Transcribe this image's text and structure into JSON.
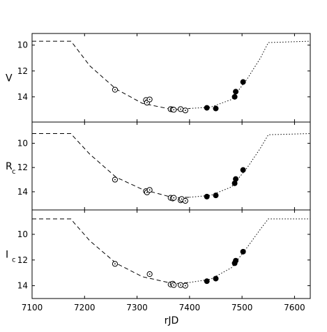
{
  "chart_data": {
    "type": "scatter",
    "xlabel": "rJD",
    "xlim": [
      7100,
      7630
    ],
    "x_ticks": [
      "7100",
      "7200",
      "7300",
      "7400",
      "7500",
      "7600"
    ],
    "grid": false,
    "panels": [
      {
        "ylabel": "V",
        "ylabel_sub": "",
        "ylim_inverted": [
          15.95,
          9.1
        ],
        "y_ticks": [
          10,
          12,
          14
        ],
        "y_tick_labels": [
          "10",
          "12",
          "14"
        ],
        "model_dashed": [
          [
            7100,
            9.7
          ],
          [
            7174,
            9.7
          ],
          [
            7180,
            10.0
          ],
          [
            7210,
            11.6
          ],
          [
            7260,
            13.4
          ],
          [
            7310,
            14.5
          ],
          [
            7370,
            15.0
          ],
          [
            7400,
            14.9
          ]
        ],
        "model_dotted": [
          [
            7400,
            14.9
          ],
          [
            7440,
            14.8
          ],
          [
            7480,
            14.2
          ],
          [
            7510,
            12.6
          ],
          [
            7535,
            11.0
          ],
          [
            7550,
            9.8
          ],
          [
            7630,
            9.7
          ]
        ],
        "open_points": [
          [
            7258,
            13.45
          ],
          [
            7317,
            14.25
          ],
          [
            7319,
            14.45
          ],
          [
            7324,
            14.2
          ],
          [
            7364,
            14.95
          ],
          [
            7368,
            14.98
          ],
          [
            7370,
            15.0
          ],
          [
            7383,
            14.95
          ],
          [
            7392,
            15.05
          ]
        ],
        "filled_points": [
          [
            7433,
            14.85
          ],
          [
            7450,
            14.9
          ],
          [
            7486,
            14.0
          ],
          [
            7488,
            13.6
          ],
          [
            7502,
            12.85
          ]
        ]
      },
      {
        "ylabel": "R",
        "ylabel_sub": "c",
        "ylim_inverted": [
          15.5,
          8.25
        ],
        "y_ticks": [
          10,
          12,
          14
        ],
        "y_tick_labels": [
          "10",
          "12",
          "14"
        ],
        "model_dashed": [
          [
            7100,
            9.2
          ],
          [
            7174,
            9.2
          ],
          [
            7180,
            9.5
          ],
          [
            7210,
            10.9
          ],
          [
            7260,
            12.8
          ],
          [
            7310,
            13.8
          ],
          [
            7370,
            14.5
          ],
          [
            7400,
            14.45
          ]
        ],
        "model_dotted": [
          [
            7400,
            14.45
          ],
          [
            7440,
            14.3
          ],
          [
            7480,
            13.6
          ],
          [
            7510,
            12.0
          ],
          [
            7535,
            10.4
          ],
          [
            7550,
            9.3
          ],
          [
            7630,
            9.2
          ]
        ],
        "open_points": [
          [
            7258,
            13.0
          ],
          [
            7317,
            13.95
          ],
          [
            7319,
            14.05
          ],
          [
            7324,
            13.85
          ],
          [
            7364,
            14.5
          ],
          [
            7368,
            14.55
          ],
          [
            7370,
            14.5
          ],
          [
            7383,
            14.7
          ],
          [
            7385,
            14.6
          ],
          [
            7392,
            14.75
          ]
        ],
        "filled_points": [
          [
            7433,
            14.4
          ],
          [
            7450,
            14.3
          ],
          [
            7486,
            13.3
          ],
          [
            7488,
            12.95
          ],
          [
            7502,
            12.2
          ]
        ]
      },
      {
        "ylabel": "I",
        "ylabel_sub": "c",
        "ylim_inverted": [
          15.0,
          8.1
        ],
        "y_ticks": [
          10,
          12,
          14
        ],
        "y_tick_labels": [
          "10",
          "12",
          "14"
        ],
        "model_dashed": [
          [
            7100,
            8.8
          ],
          [
            7174,
            8.8
          ],
          [
            7180,
            9.1
          ],
          [
            7210,
            10.5
          ],
          [
            7260,
            12.25
          ],
          [
            7310,
            13.3
          ],
          [
            7370,
            13.85
          ],
          [
            7400,
            13.75
          ]
        ],
        "model_dotted": [
          [
            7400,
            13.75
          ],
          [
            7440,
            13.5
          ],
          [
            7480,
            12.6
          ],
          [
            7510,
            11.0
          ],
          [
            7535,
            9.6
          ],
          [
            7550,
            8.8
          ],
          [
            7630,
            8.8
          ]
        ],
        "open_points": [
          [
            7258,
            12.3
          ],
          [
            7324,
            13.1
          ],
          [
            7364,
            13.9
          ],
          [
            7368,
            13.85
          ],
          [
            7370,
            13.95
          ],
          [
            7383,
            13.95
          ],
          [
            7392,
            14.0
          ]
        ],
        "filled_points": [
          [
            7433,
            13.65
          ],
          [
            7450,
            13.45
          ],
          [
            7486,
            12.25
          ],
          [
            7488,
            12.05
          ],
          [
            7502,
            11.35
          ]
        ]
      }
    ]
  }
}
